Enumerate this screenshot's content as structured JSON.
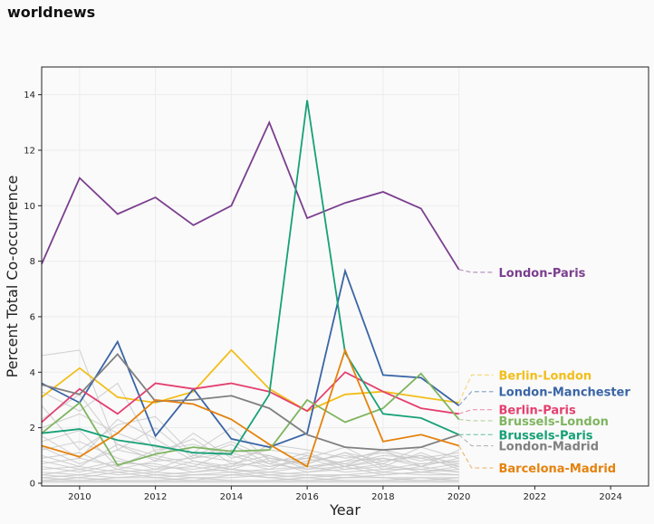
{
  "chart_data": {
    "type": "line",
    "title": "worldnews",
    "xlabel": "Year",
    "ylabel": "Percent Total Co-occurrence",
    "xlim": [
      2009,
      2025
    ],
    "ylim": [
      -0.1,
      15
    ],
    "xticks": [
      2010,
      2012,
      2014,
      2016,
      2018,
      2020,
      2022,
      2024
    ],
    "yticks": [
      0,
      2,
      4,
      6,
      8,
      10,
      12,
      14
    ],
    "x": [
      2009,
      2010,
      2011,
      2012,
      2013,
      2014,
      2015,
      2016,
      2017,
      2018,
      2019,
      2020
    ],
    "label_anchor_x": 2021,
    "background_series_color": "#c8c8c8",
    "background_series": [
      [
        4.6,
        4.8,
        1.2,
        2.0,
        0.9,
        1.4,
        0.7,
        1.1,
        0.6,
        0.9,
        0.7,
        0.8
      ],
      [
        3.3,
        2.6,
        3.6,
        1.1,
        1.6,
        0.7,
        1.0,
        0.5,
        0.8,
        1.2,
        0.6,
        0.9
      ],
      [
        2.8,
        1.2,
        2.1,
        2.4,
        1.0,
        1.5,
        0.9,
        0.7,
        1.1,
        0.8,
        1.0,
        0.7
      ],
      [
        2.3,
        3.2,
        1.4,
        0.8,
        1.8,
        0.9,
        1.2,
        1.0,
        0.7,
        1.0,
        0.9,
        1.1
      ],
      [
        2.0,
        2.5,
        1.8,
        1.3,
        1.1,
        2.0,
        0.8,
        0.9,
        1.3,
        0.6,
        1.1,
        0.6
      ],
      [
        1.7,
        0.9,
        2.3,
        1.6,
        0.8,
        0.6,
        1.4,
        1.2,
        0.9,
        1.1,
        0.8,
        1.0
      ],
      [
        1.5,
        1.9,
        0.6,
        1.2,
        1.4,
        1.0,
        0.6,
        0.8,
        1.0,
        0.7,
        1.3,
        0.9
      ],
      [
        1.3,
        0.7,
        1.2,
        0.9,
        0.6,
        1.2,
        1.0,
        0.6,
        0.8,
        0.9,
        0.6,
        1.2
      ],
      [
        1.2,
        1.5,
        0.9,
        0.5,
        1.0,
        0.8,
        0.5,
        1.0,
        0.6,
        1.2,
        0.9,
        0.6
      ],
      [
        1.0,
        0.6,
        1.4,
        1.0,
        0.7,
        0.5,
        0.9,
        0.7,
        1.1,
        0.5,
        0.7,
        0.8
      ],
      [
        0.9,
        1.1,
        0.5,
        0.8,
        0.9,
        1.1,
        0.7,
        0.5,
        0.6,
        0.8,
        1.0,
        0.5
      ],
      [
        0.8,
        0.5,
        0.8,
        0.6,
        0.5,
        0.7,
        0.6,
        0.9,
        0.5,
        0.6,
        0.5,
        0.7
      ],
      [
        0.7,
        0.9,
        0.6,
        0.4,
        0.8,
        0.5,
        0.4,
        0.6,
        0.7,
        0.4,
        0.6,
        0.4
      ],
      [
        0.6,
        0.4,
        0.7,
        0.7,
        0.4,
        0.6,
        0.8,
        0.4,
        0.5,
        0.7,
        0.4,
        0.6
      ],
      [
        0.5,
        0.6,
        0.4,
        0.5,
        0.6,
        0.4,
        0.5,
        0.6,
        0.4,
        0.5,
        0.5,
        0.4
      ],
      [
        0.4,
        0.3,
        0.5,
        0.3,
        0.4,
        0.5,
        0.3,
        0.4,
        0.6,
        0.3,
        0.4,
        0.5
      ],
      [
        0.3,
        0.5,
        0.3,
        0.4,
        0.3,
        0.3,
        0.4,
        0.3,
        0.3,
        0.4,
        0.3,
        0.3
      ],
      [
        0.3,
        0.2,
        0.4,
        0.2,
        0.3,
        0.4,
        0.2,
        0.3,
        0.2,
        0.3,
        0.4,
        0.3
      ],
      [
        0.2,
        0.3,
        0.2,
        0.3,
        0.2,
        0.2,
        0.3,
        0.2,
        0.3,
        0.2,
        0.2,
        0.2
      ],
      [
        0.2,
        0.1,
        0.2,
        0.2,
        0.1,
        0.3,
        0.2,
        0.1,
        0.2,
        0.2,
        0.1,
        0.2
      ],
      [
        0.1,
        0.2,
        0.1,
        0.1,
        0.2,
        0.1,
        0.1,
        0.2,
        0.1,
        0.1,
        0.2,
        0.1
      ],
      [
        0.1,
        0.1,
        0.1,
        0.1,
        0.1,
        0.1,
        0.1,
        0.1,
        0.1,
        0.1,
        0.1,
        0.1
      ],
      [
        0.05,
        0.05,
        0.05,
        0.05,
        0.05,
        0.05,
        0.05,
        0.05,
        0.05,
        0.05,
        0.05,
        0.05
      ]
    ],
    "series": [
      {
        "name": "London-Paris",
        "color": "#7b3f8f",
        "values": [
          7.9,
          11.0,
          9.7,
          10.3,
          9.3,
          10.0,
          13.0,
          9.55,
          10.1,
          10.5,
          9.9,
          7.7
        ],
        "label_y": 7.6
      },
      {
        "name": "Berlin-London",
        "color": "#f2be1a",
        "values": [
          3.1,
          4.15,
          3.1,
          2.9,
          3.3,
          4.8,
          3.4,
          2.6,
          3.2,
          3.3,
          3.1,
          2.9
        ],
        "label_y": 3.9
      },
      {
        "name": "London-Manchester",
        "color": "#3a65a5",
        "values": [
          3.6,
          2.9,
          5.1,
          1.7,
          3.4,
          1.6,
          1.3,
          1.8,
          7.65,
          3.9,
          3.8,
          2.8
        ],
        "label_y": 3.3
      },
      {
        "name": "Berlin-Paris",
        "color": "#e43f6f",
        "values": [
          2.2,
          3.4,
          2.5,
          3.6,
          3.4,
          3.6,
          3.3,
          2.6,
          4.0,
          3.3,
          2.7,
          2.5
        ],
        "label_y": 2.65
      },
      {
        "name": "Brussels-London",
        "color": "#7fb560",
        "values": [
          1.8,
          2.9,
          0.65,
          1.05,
          1.3,
          1.15,
          1.2,
          3.0,
          2.2,
          2.7,
          3.95,
          2.3
        ],
        "label_y": 2.25
      },
      {
        "name": "Brussels-Paris",
        "color": "#17a077",
        "values": [
          1.8,
          1.95,
          1.55,
          1.35,
          1.1,
          1.05,
          3.2,
          13.8,
          4.7,
          2.5,
          2.35,
          1.75
        ],
        "label_y": 1.75
      },
      {
        "name": "London-Madrid",
        "color": "#808080",
        "values": [
          3.55,
          3.2,
          4.65,
          2.95,
          3.0,
          3.15,
          2.7,
          1.75,
          1.3,
          1.2,
          1.3,
          1.75
        ],
        "label_y": 1.35
      },
      {
        "name": "Barcelona-Madrid",
        "color": "#e5820d",
        "values": [
          1.35,
          0.95,
          1.8,
          3.0,
          2.85,
          2.3,
          1.4,
          0.6,
          4.8,
          1.5,
          1.75,
          1.35
        ],
        "label_y": 0.55
      }
    ]
  }
}
